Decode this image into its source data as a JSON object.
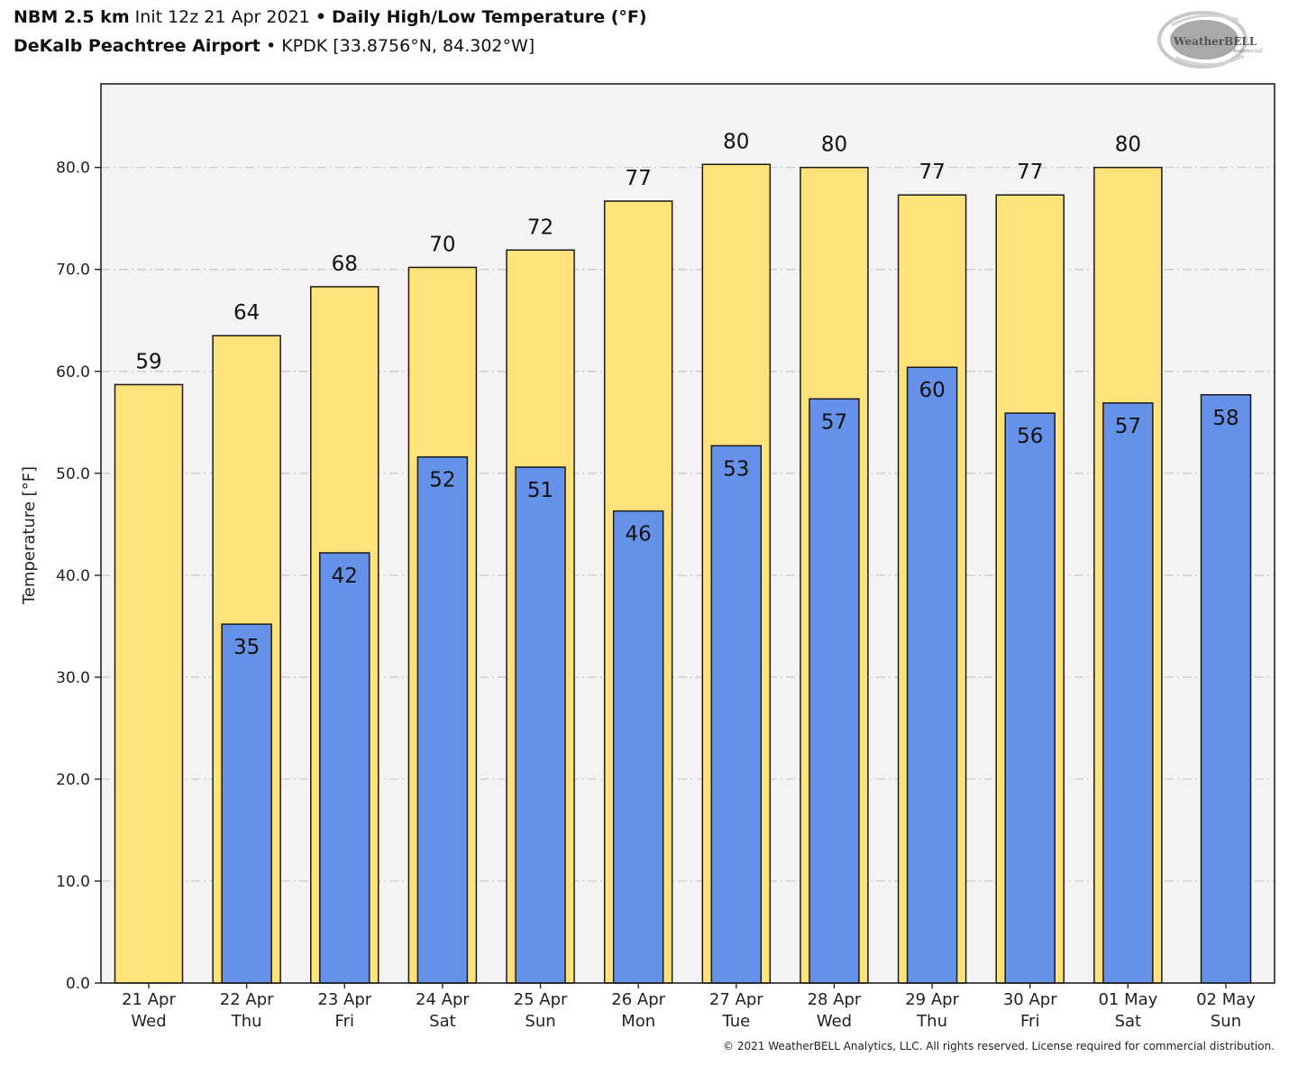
{
  "header": {
    "model": "NBM 2.5 km",
    "init": "Init 12z 21 Apr 2021",
    "separator": "•",
    "product": "Daily High/Low Temperature (°F)",
    "station_name": "DeKalb Peachtree Airport",
    "station_info": "KPDK [33.8756°N, 84.302°W]"
  },
  "logo": {
    "text_main": "WeatherBELL",
    "text_sub": "Analytics LLC"
  },
  "footer": {
    "copyright": "© 2021 WeatherBELL Analytics, LLC. All rights reserved. License required for commercial distribution."
  },
  "colors": {
    "high": "#ffe27a",
    "low": "#6592e8",
    "plot_bg": "#f3f3f3",
    "grid": "#c8c8c8",
    "edge": "#1a1a1a"
  },
  "chart_data": {
    "type": "bar",
    "title": "Daily High/Low Temperature (°F)",
    "xlabel": "",
    "ylabel": "Temperature [°F]",
    "ylim": [
      0,
      88.2
    ],
    "yticks": [
      0,
      10,
      20,
      30,
      40,
      50,
      60,
      70,
      80
    ],
    "ytick_labels": [
      "0.0",
      "10.0",
      "20.0",
      "30.0",
      "40.0",
      "50.0",
      "60.0",
      "70.0",
      "80.0"
    ],
    "grid": true,
    "categories": [
      {
        "date": "21 Apr",
        "day": "Wed"
      },
      {
        "date": "22 Apr",
        "day": "Thu"
      },
      {
        "date": "23 Apr",
        "day": "Fri"
      },
      {
        "date": "24 Apr",
        "day": "Sat"
      },
      {
        "date": "25 Apr",
        "day": "Sun"
      },
      {
        "date": "26 Apr",
        "day": "Mon"
      },
      {
        "date": "27 Apr",
        "day": "Tue"
      },
      {
        "date": "28 Apr",
        "day": "Wed"
      },
      {
        "date": "29 Apr",
        "day": "Thu"
      },
      {
        "date": "30 Apr",
        "day": "Fri"
      },
      {
        "date": "01 May",
        "day": "Sat"
      },
      {
        "date": "02 May",
        "day": "Sun"
      }
    ],
    "series": [
      {
        "name": "High",
        "values": [
          58.7,
          63.5,
          68.3,
          70.2,
          71.9,
          76.7,
          80.3,
          80.0,
          77.3,
          77.3,
          80.0,
          null
        ],
        "labels": [
          "59",
          "64",
          "68",
          "70",
          "72",
          "77",
          "80",
          "80",
          "77",
          "77",
          "80",
          null
        ]
      },
      {
        "name": "Low",
        "values": [
          null,
          35.2,
          42.2,
          51.6,
          50.6,
          46.3,
          52.7,
          57.3,
          60.4,
          55.9,
          56.9,
          57.7
        ],
        "labels": [
          null,
          "35",
          "42",
          "52",
          "51",
          "46",
          "53",
          "57",
          "60",
          "56",
          "57",
          "58"
        ]
      }
    ]
  }
}
